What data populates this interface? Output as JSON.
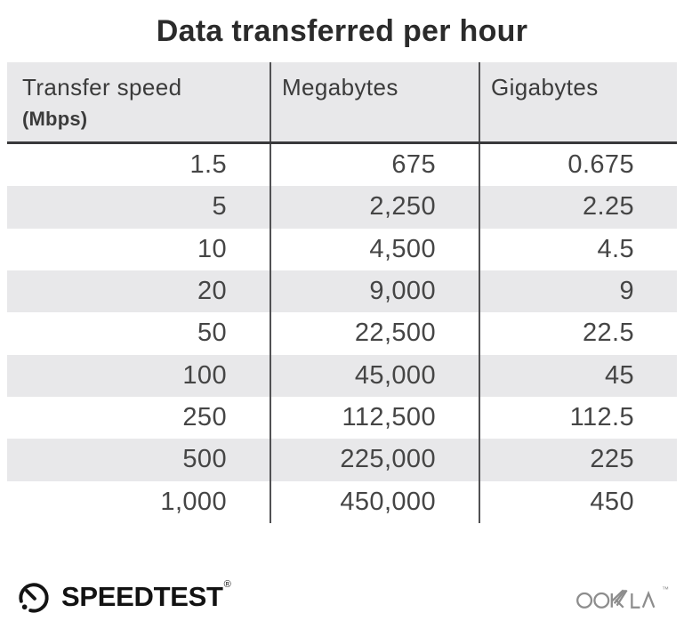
{
  "title": "Data transferred per hour",
  "table": {
    "columns": [
      {
        "label": "Transfer speed",
        "sublabel": "(Mbps)"
      },
      {
        "label": "Megabytes",
        "sublabel": ""
      },
      {
        "label": "Gigabytes",
        "sublabel": ""
      }
    ],
    "rows": [
      [
        "1.5",
        "675",
        "0.675"
      ],
      [
        "5",
        "2,250",
        "2.25"
      ],
      [
        "10",
        "4,500",
        "4.5"
      ],
      [
        "20",
        "9,000",
        "9"
      ],
      [
        "50",
        "22,500",
        "22.5"
      ],
      [
        "100",
        "45,000",
        "45"
      ],
      [
        "250",
        "112,500",
        "112.5"
      ],
      [
        "500",
        "225,000",
        "225"
      ],
      [
        "1,000",
        "450,000",
        "450"
      ]
    ]
  },
  "footer": {
    "speedtest_label": "SPEEDTEST",
    "speedtest_reg_mark": "®",
    "ookla_label": "OOKLA",
    "ookla_trade_mark": "™"
  },
  "colors": {
    "header_bg": "#e8e8ea",
    "stripe_bg": "#e8e8ea",
    "divider": "#515153",
    "header_border": "#39393b",
    "title_text": "#2b2b2b",
    "header_text": "#3b3b3b",
    "body_text": "#454545",
    "speedtest_logo": "#141414",
    "ookla_logo": "#8d8d8d"
  },
  "chart_data": {
    "type": "table",
    "title": "Data transferred per hour",
    "columns": [
      "Transfer speed (Mbps)",
      "Megabytes",
      "Gigabytes"
    ],
    "rows": [
      [
        1.5,
        675,
        0.675
      ],
      [
        5,
        2250,
        2.25
      ],
      [
        10,
        4500,
        4.5
      ],
      [
        20,
        9000,
        9
      ],
      [
        50,
        22500,
        22.5
      ],
      [
        100,
        45000,
        45
      ],
      [
        250,
        112500,
        112.5
      ],
      [
        500,
        225000,
        225
      ],
      [
        1000,
        450000,
        450
      ]
    ]
  }
}
